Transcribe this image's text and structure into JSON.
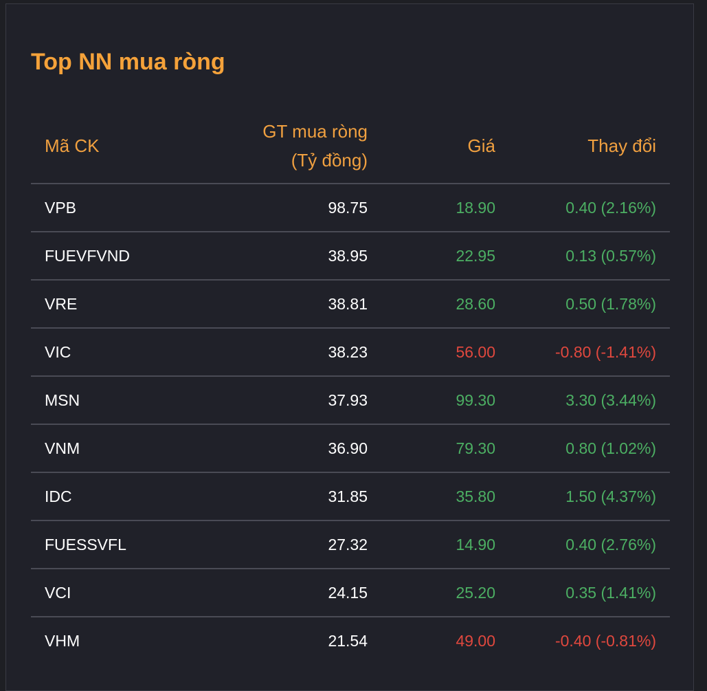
{
  "title": "Top NN mua ròng",
  "columns": {
    "symbol": "Mã CK",
    "value_line1": "GT mua ròng",
    "value_line2": "(Tỷ đồng)",
    "price": "Giá",
    "change": "Thay đổi"
  },
  "colors": {
    "accent": "#f5a23a",
    "up": "#4caf63",
    "down": "#e0483e",
    "background": "#202129"
  },
  "rows": [
    {
      "symbol": "VPB",
      "value": "98.75",
      "price": "18.90",
      "change": "0.40 (2.16%)",
      "direction": "up"
    },
    {
      "symbol": "FUEVFVND",
      "value": "38.95",
      "price": "22.95",
      "change": "0.13 (0.57%)",
      "direction": "up"
    },
    {
      "symbol": "VRE",
      "value": "38.81",
      "price": "28.60",
      "change": "0.50 (1.78%)",
      "direction": "up"
    },
    {
      "symbol": "VIC",
      "value": "38.23",
      "price": "56.00",
      "change": "-0.80 (-1.41%)",
      "direction": "down"
    },
    {
      "symbol": "MSN",
      "value": "37.93",
      "price": "99.30",
      "change": "3.30 (3.44%)",
      "direction": "up"
    },
    {
      "symbol": "VNM",
      "value": "36.90",
      "price": "79.30",
      "change": "0.80 (1.02%)",
      "direction": "up"
    },
    {
      "symbol": "IDC",
      "value": "31.85",
      "price": "35.80",
      "change": "1.50 (4.37%)",
      "direction": "up"
    },
    {
      "symbol": "FUESSVFL",
      "value": "27.32",
      "price": "14.90",
      "change": "0.40 (2.76%)",
      "direction": "up"
    },
    {
      "symbol": "VCI",
      "value": "24.15",
      "price": "25.20",
      "change": "0.35 (1.41%)",
      "direction": "up"
    },
    {
      "symbol": "VHM",
      "value": "21.54",
      "price": "49.00",
      "change": "-0.40 (-0.81%)",
      "direction": "down"
    }
  ]
}
